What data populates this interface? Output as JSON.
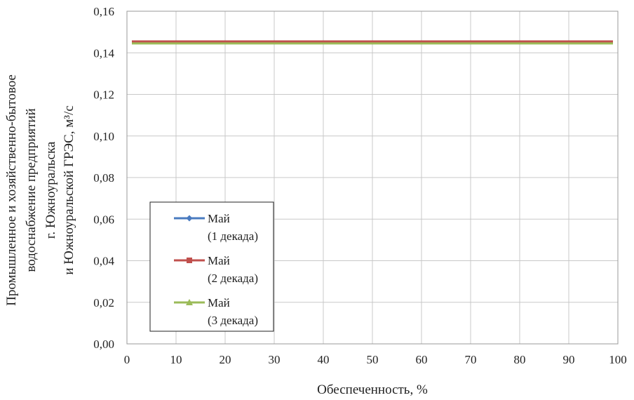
{
  "chart_data": {
    "type": "line",
    "xlabel": "Обеспеченность, %",
    "ylabel_lines": [
      "Промышленное и хозяйственно-бытовое",
      "водоснабжение предприятий",
      "г. Южноуральска",
      "и Южноуральской ГРЭС, м³/с"
    ],
    "xlim": [
      0,
      100
    ],
    "ylim": [
      0,
      0.16
    ],
    "x_ticks": [
      0,
      10,
      20,
      30,
      40,
      50,
      60,
      70,
      80,
      90,
      100
    ],
    "x_tick_labels": [
      "0",
      "10",
      "20",
      "30",
      "40",
      "50",
      "60",
      "70",
      "80",
      "90",
      "100"
    ],
    "y_ticks": [
      0,
      0.02,
      0.04,
      0.06,
      0.08,
      0.1,
      0.12,
      0.14,
      0.16
    ],
    "y_tick_labels": [
      "0,00",
      "0,02",
      "0,04",
      "0,06",
      "0,08",
      "0,10",
      "0,12",
      "0,14",
      "0,16"
    ],
    "grid": true,
    "legend_position": "bottom-left",
    "series": [
      {
        "name_lines": [
          "Май",
          "(1 декада)"
        ],
        "color": "#4a7bc0",
        "marker": "diamond",
        "x": [
          1,
          99
        ],
        "y": [
          0.145,
          0.145
        ]
      },
      {
        "name_lines": [
          "Май",
          "(2 декада)"
        ],
        "color": "#c0504d",
        "marker": "square",
        "x": [
          1,
          99
        ],
        "y": [
          0.1455,
          0.1455
        ]
      },
      {
        "name_lines": [
          "Май",
          "(3 декада)"
        ],
        "color": "#9bbb59",
        "marker": "triangle",
        "x": [
          1,
          99
        ],
        "y": [
          0.1445,
          0.1445
        ]
      }
    ]
  }
}
